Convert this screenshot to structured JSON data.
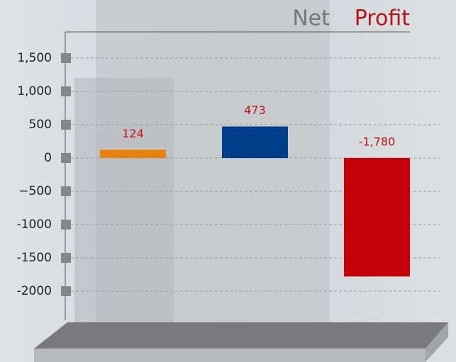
{
  "chart_data": {
    "type": "bar",
    "title": [
      "Net",
      "Profit"
    ],
    "values": [
      124,
      473,
      -1780
    ],
    "value_labels": [
      "124",
      "473",
      "-1,780"
    ],
    "colors": [
      "#e8820c",
      "#003e8a",
      "#c4000a"
    ],
    "ylim": [
      -2400,
      1900
    ],
    "yticks": [
      {
        "value": 1500,
        "label": "1,500"
      },
      {
        "value": 1000,
        "label": "1,000"
      },
      500,
      0,
      {
        "value": -500,
        "label": "−500"
      },
      {
        "value": -1000,
        "label": "-1000"
      },
      {
        "value": -1500,
        "label": "-1500"
      },
      {
        "value": -2000,
        "label": "-2000"
      }
    ],
    "grid": true
  }
}
